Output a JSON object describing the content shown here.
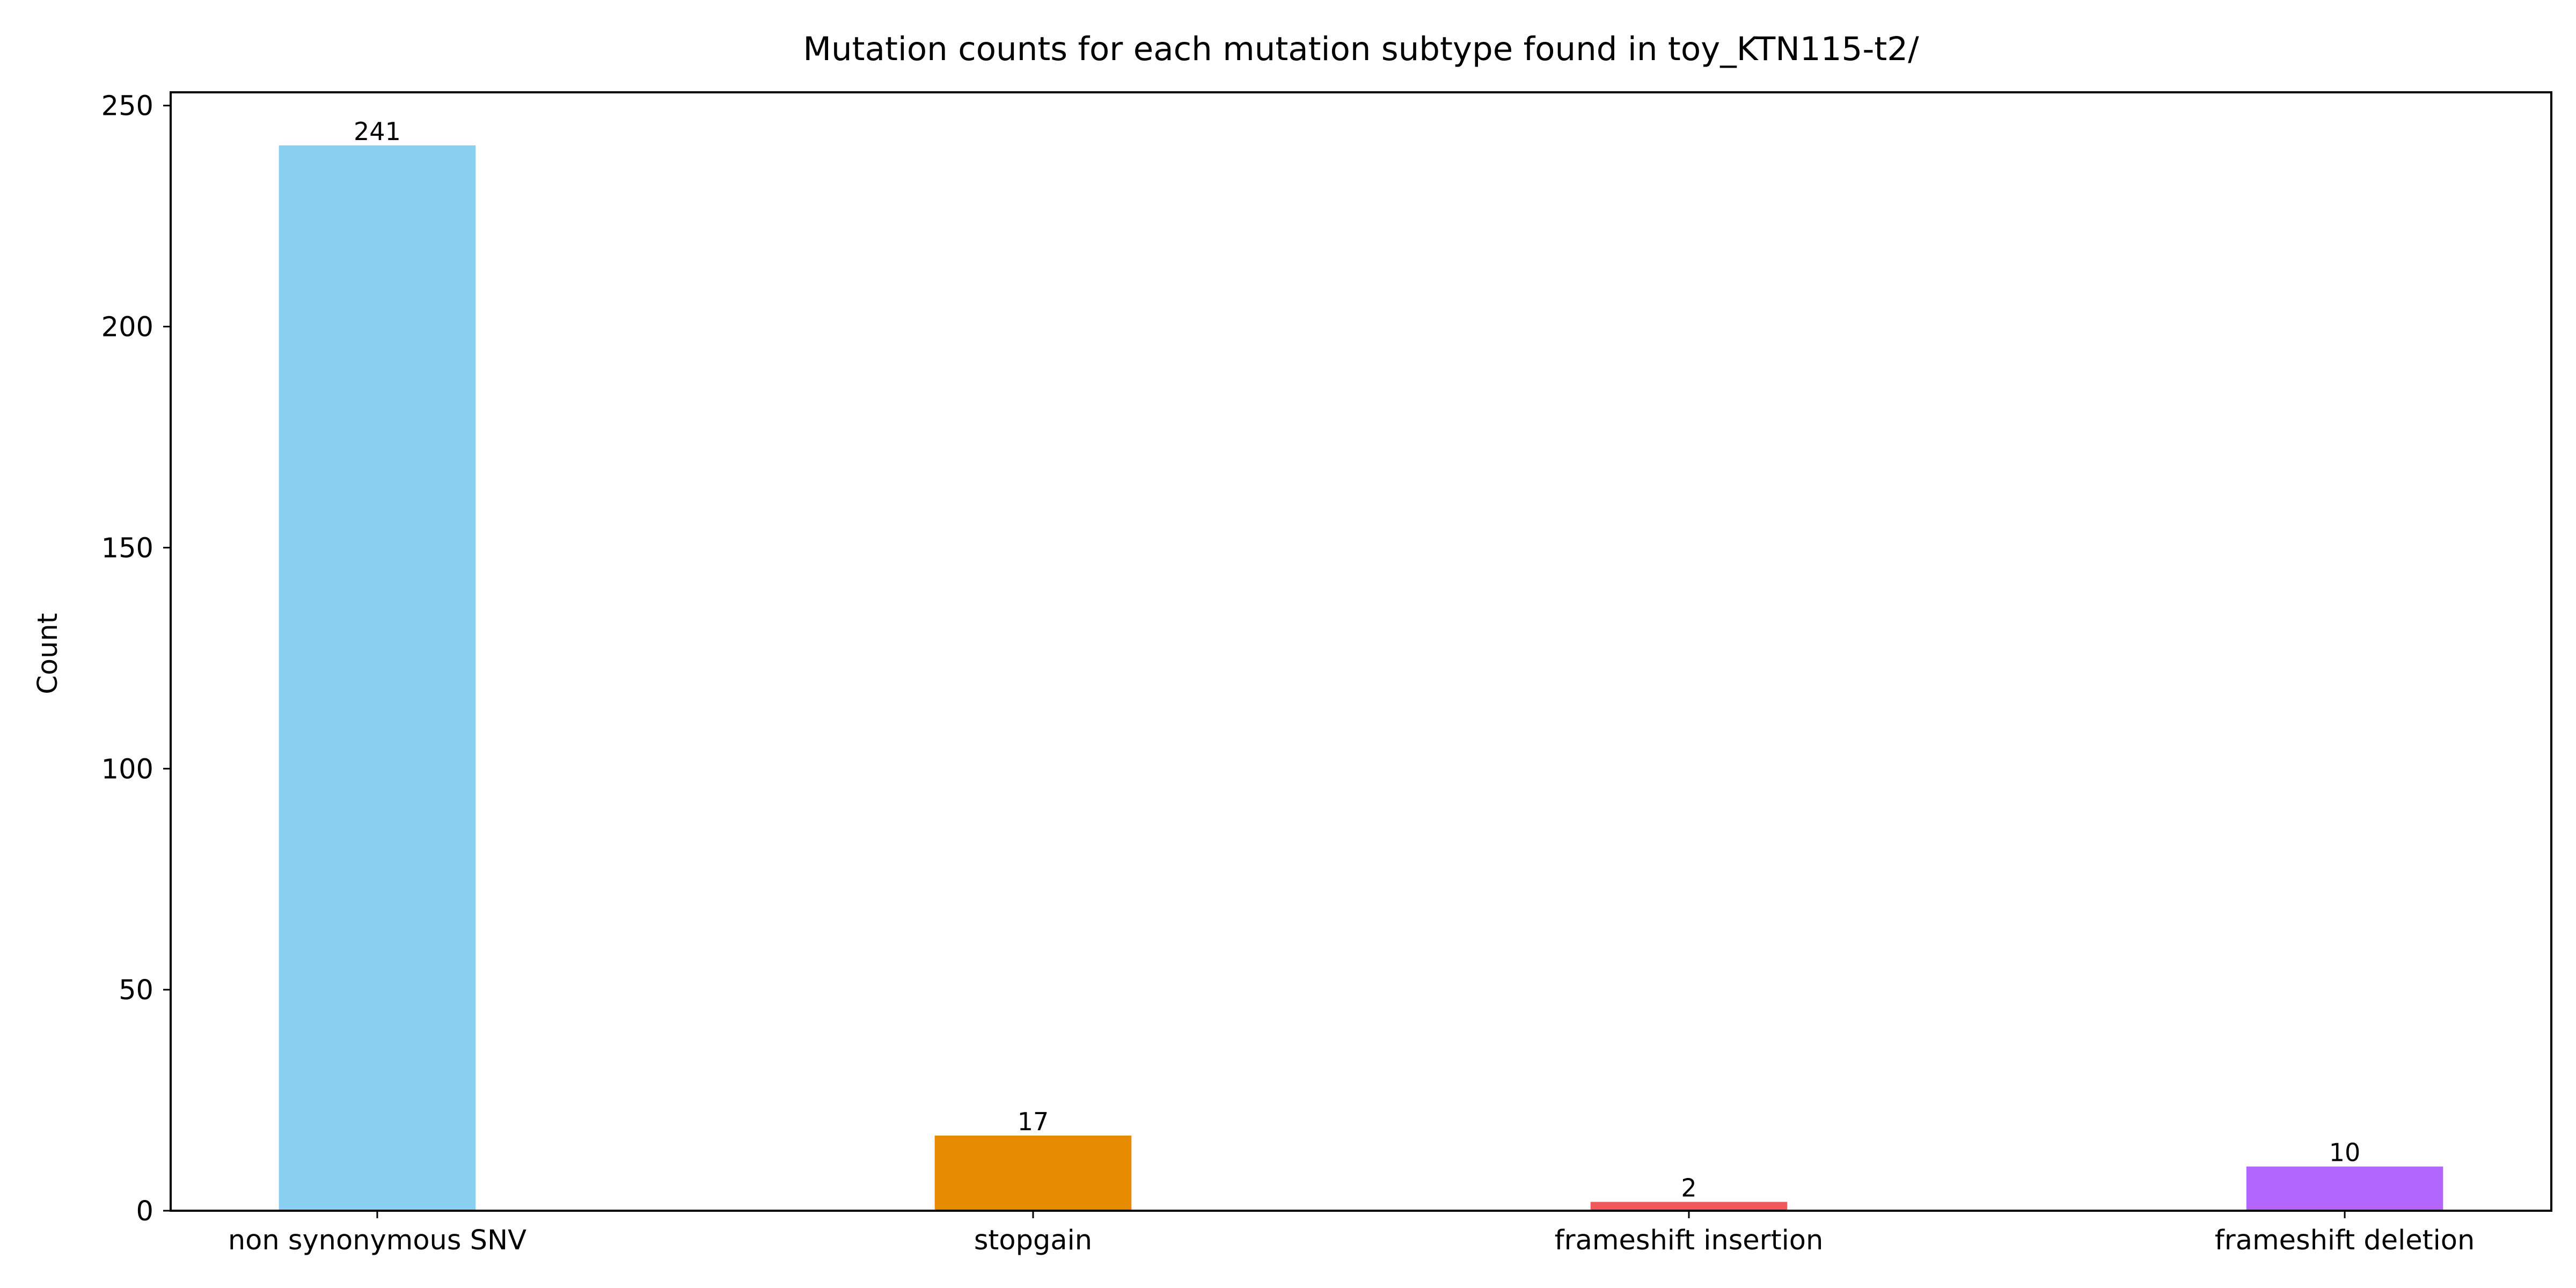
{
  "chart_data": {
    "type": "bar",
    "title": "Mutation counts for each mutation subtype found in toy_KTN115-t2/",
    "xlabel": "",
    "ylabel": "Count",
    "categories": [
      "non synonymous SNV",
      "stopgain",
      "frameshift insertion",
      "frameshift deletion"
    ],
    "values": [
      241,
      17,
      2,
      10
    ],
    "data_labels": [
      "241",
      "17",
      "2",
      "10"
    ],
    "colors": [
      "#89CFF0",
      "#E68A00",
      "#F0595B",
      "#B266FF"
    ],
    "ylim": [
      0,
      253
    ],
    "yticks": [
      0,
      50,
      100,
      150,
      200,
      250
    ],
    "ytick_labels": [
      "0",
      "50",
      "100",
      "150",
      "200",
      "250"
    ],
    "grid": false,
    "legend": "none"
  }
}
